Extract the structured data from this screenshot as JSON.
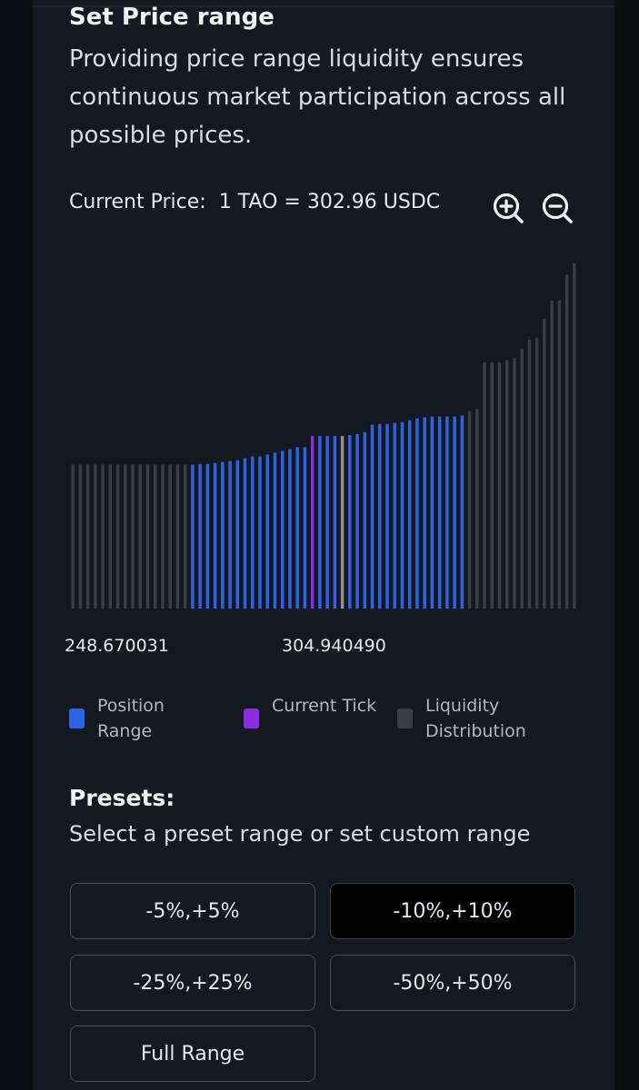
{
  "header": {
    "title": "Set Price range",
    "description": "Providing price range liquidity ensures continuous market participation across all possible prices."
  },
  "price": {
    "label": "Current Price:",
    "value": "1 TAO = 302.96 USDC"
  },
  "zoom": {
    "in_icon": "zoom-in-icon",
    "out_icon": "zoom-out-icon"
  },
  "range_labels": {
    "min": "248.670031",
    "current": "304.940490"
  },
  "legend": [
    {
      "label": "Position Range",
      "color": "#2f63e6"
    },
    {
      "label": "Current Tick",
      "color": "#8b2be2"
    },
    {
      "label": "Liquidity Distribution",
      "color": "#3a3d47"
    }
  ],
  "presets": {
    "title": "Presets:",
    "subtitle": "Select a preset range or set custom range",
    "options": [
      "-5%,+5%",
      "-10%,+10%",
      "-25%,+25%",
      "-50%,+50%",
      "Full Range"
    ],
    "selected": "-10%,+10%"
  },
  "chart_data": {
    "type": "bar",
    "position_range": [
      16,
      52
    ],
    "current_tick": 32,
    "marker_tick": 36,
    "colors": {
      "position": "#2f63e6",
      "current": "#8b2be2",
      "marker": "#8e9096",
      "distribution": "#3a3d47"
    },
    "values": [
      155,
      155,
      155,
      155,
      155,
      155,
      155,
      155,
      155,
      155,
      155,
      155,
      155,
      155,
      155,
      155,
      155,
      156,
      156,
      157,
      158,
      159,
      160,
      162,
      164,
      164,
      166,
      168,
      170,
      172,
      174,
      174,
      186,
      186,
      186,
      186,
      186,
      187,
      188,
      190,
      198,
      199,
      199,
      200,
      201,
      203,
      205,
      206,
      207,
      207,
      207,
      207,
      208,
      213,
      215,
      265,
      265,
      265,
      268,
      270,
      280,
      290,
      292,
      312,
      332,
      332,
      360,
      372
    ]
  }
}
